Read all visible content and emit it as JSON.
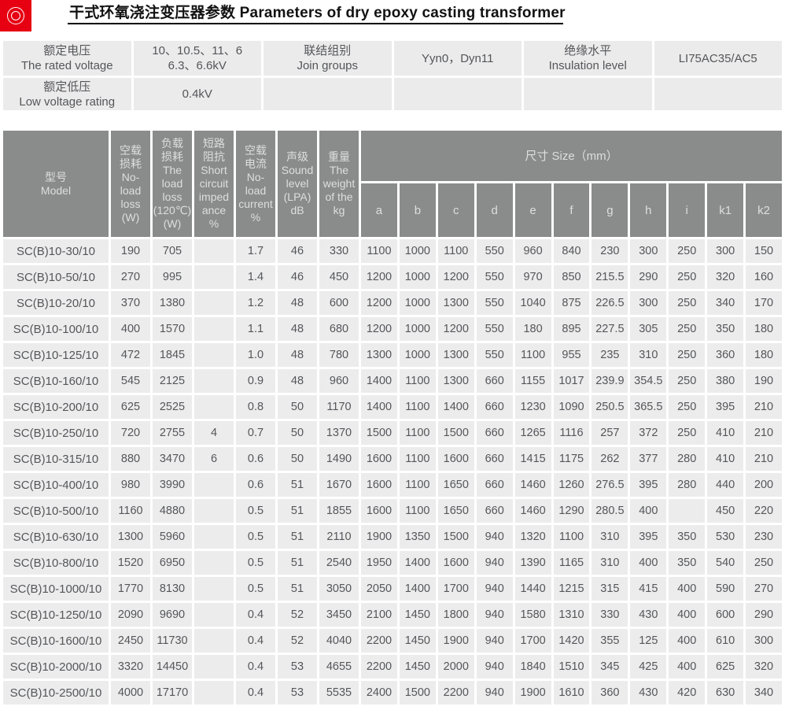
{
  "page": {
    "title": "干式环氧浇注变压器参数 Parameters of dry epoxy casting transformer",
    "logo_icon": "double-ring-seal-icon",
    "colors": {
      "accent_red": "#e60012",
      "header_gray": "#8a8b8b",
      "cell_gray": "#ececec",
      "summary_cell_gray": "#ebebeb"
    }
  },
  "info_table": {
    "rows": [
      [
        {
          "zh": "额定电压",
          "en": "The rated voltage"
        },
        {
          "lines": [
            "10、10.5、11、6",
            "6.3、6.6kV"
          ]
        },
        {
          "zh": "联结组别",
          "en": "Join groups"
        },
        {
          "text": "Yyn0，Dyn11"
        },
        {
          "zh": "绝缘水平",
          "en": "Insulation level"
        },
        {
          "text": "LI75AC35/AC5"
        }
      ],
      [
        {
          "zh": "额定低压",
          "en": "Low voltage rating"
        },
        {
          "text": "0.4kV"
        },
        {
          "text": ""
        },
        {
          "text": ""
        },
        {
          "text": ""
        },
        {
          "text": ""
        }
      ]
    ]
  },
  "main_table": {
    "model_header": {
      "zh": "型号",
      "en": "Model"
    },
    "param_headers": [
      {
        "lines": [
          "空载",
          "损耗",
          "No-",
          "load",
          "loss",
          "(W)"
        ]
      },
      {
        "lines": [
          "负载",
          "损耗",
          "The",
          "load",
          "loss",
          "(120℃)",
          "(W)"
        ]
      },
      {
        "lines": [
          "短路",
          "阻抗",
          "Short",
          "circuit",
          "imped",
          "ance",
          "%"
        ]
      },
      {
        "lines": [
          "空载",
          "电流",
          "No-",
          "load",
          "current",
          "%"
        ]
      },
      {
        "lines": [
          "声级",
          "Sound",
          "level",
          "(LPA)",
          "dB"
        ]
      },
      {
        "lines": [
          "重量",
          "The",
          "weight",
          "of the",
          "kg"
        ]
      }
    ],
    "size_header": "尺寸 Size（mm）",
    "size_columns": [
      "a",
      "b",
      "c",
      "d",
      "e",
      "f",
      "g",
      "h",
      "i",
      "k1",
      "k2"
    ],
    "rows": [
      {
        "model": "SC(B)10-30/10",
        "values": [
          "190",
          "705",
          "",
          "1.7",
          "46",
          "330",
          "1100",
          "1000",
          "1100",
          "550",
          "960",
          "840",
          "230",
          "300",
          "250",
          "300",
          "150"
        ]
      },
      {
        "model": "SC(B)10-50/10",
        "values": [
          "270",
          "995",
          "",
          "1.4",
          "46",
          "450",
          "1200",
          "1000",
          "1200",
          "550",
          "970",
          "850",
          "215.5",
          "290",
          "250",
          "320",
          "160"
        ]
      },
      {
        "model": "SC(B)10-20/10",
        "values": [
          "370",
          "1380",
          "",
          "1.2",
          "48",
          "600",
          "1200",
          "1000",
          "1300",
          "550",
          "1040",
          "875",
          "226.5",
          "300",
          "250",
          "340",
          "170"
        ]
      },
      {
        "model": "SC(B)10-100/10",
        "values": [
          "400",
          "1570",
          "",
          "1.1",
          "48",
          "680",
          "1200",
          "1000",
          "1200",
          "550",
          "180",
          "895",
          "227.5",
          "305",
          "250",
          "350",
          "180"
        ]
      },
      {
        "model": "SC(B)10-125/10",
        "values": [
          "472",
          "1845",
          "",
          "1.0",
          "48",
          "780",
          "1300",
          "1000",
          "1300",
          "550",
          "1100",
          "955",
          "235",
          "310",
          "250",
          "360",
          "180"
        ]
      },
      {
        "model": "SC(B)10-160/10",
        "values": [
          "545",
          "2125",
          "",
          "0.9",
          "48",
          "960",
          "1400",
          "1100",
          "1300",
          "660",
          "1155",
          "1017",
          "239.9",
          "354.5",
          "250",
          "380",
          "190"
        ]
      },
      {
        "model": "SC(B)10-200/10",
        "values": [
          "625",
          "2525",
          "",
          "0.8",
          "50",
          "1170",
          "1400",
          "1100",
          "1400",
          "660",
          "1230",
          "1090",
          "250.5",
          "365.5",
          "250",
          "395",
          "210"
        ]
      },
      {
        "model": "SC(B)10-250/10",
        "values": [
          "720",
          "2755",
          "4",
          "0.7",
          "50",
          "1370",
          "1500",
          "1100",
          "1500",
          "660",
          "1265",
          "1116",
          "257",
          "372",
          "250",
          "410",
          "210"
        ]
      },
      {
        "model": "SC(B)10-315/10",
        "values": [
          "880",
          "3470",
          "6",
          "0.6",
          "50",
          "1490",
          "1600",
          "1100",
          "1600",
          "660",
          "1415",
          "1175",
          "262",
          "377",
          "280",
          "410",
          "210"
        ]
      },
      {
        "model": "SC(B)10-400/10",
        "values": [
          "980",
          "3990",
          "",
          "0.6",
          "51",
          "1670",
          "1600",
          "1100",
          "1650",
          "660",
          "1460",
          "1260",
          "276.5",
          "395",
          "280",
          "440",
          "200"
        ]
      },
      {
        "model": "SC(B)10-500/10",
        "values": [
          "1160",
          "4880",
          "",
          "0.5",
          "51",
          "1855",
          "1600",
          "1100",
          "1650",
          "660",
          "1460",
          "1290",
          "280.5",
          "400",
          "",
          "450",
          "220"
        ]
      },
      {
        "model": "SC(B)10-630/10",
        "values": [
          "1300",
          "5960",
          "",
          "0.5",
          "51",
          "2110",
          "1900",
          "1350",
          "1500",
          "940",
          "1320",
          "1100",
          "310",
          "395",
          "350",
          "530",
          "230"
        ]
      },
      {
        "model": "SC(B)10-800/10",
        "values": [
          "1520",
          "6950",
          "",
          "0.5",
          "51",
          "2540",
          "1950",
          "1400",
          "1600",
          "940",
          "1390",
          "1165",
          "310",
          "400",
          "350",
          "540",
          "250"
        ]
      },
      {
        "model": "SC(B)10-1000/10",
        "values": [
          "1770",
          "8130",
          "",
          "0.5",
          "51",
          "3050",
          "2050",
          "1400",
          "1700",
          "940",
          "1440",
          "1215",
          "315",
          "415",
          "400",
          "590",
          "270"
        ]
      },
      {
        "model": "SC(B)10-1250/10",
        "values": [
          "2090",
          "9690",
          "",
          "0.4",
          "52",
          "3450",
          "2100",
          "1450",
          "1800",
          "940",
          "1580",
          "1310",
          "330",
          "430",
          "400",
          "600",
          "290"
        ]
      },
      {
        "model": "SC(B)10-1600/10",
        "values": [
          "2450",
          "11730",
          "",
          "0.4",
          "52",
          "4040",
          "2200",
          "1450",
          "1900",
          "940",
          "1700",
          "1420",
          "355",
          "125",
          "400",
          "610",
          "300"
        ]
      },
      {
        "model": "SC(B)10-2000/10",
        "values": [
          "3320",
          "14450",
          "",
          "0.4",
          "53",
          "4655",
          "2200",
          "1450",
          "2000",
          "940",
          "1840",
          "1510",
          "345",
          "425",
          "400",
          "625",
          "320"
        ]
      },
      {
        "model": "SC(B)10-2500/10",
        "values": [
          "4000",
          "17170",
          "",
          "0.4",
          "53",
          "5535",
          "2400",
          "1500",
          "2200",
          "940",
          "1900",
          "1610",
          "360",
          "430",
          "420",
          "630",
          "340"
        ]
      }
    ]
  }
}
